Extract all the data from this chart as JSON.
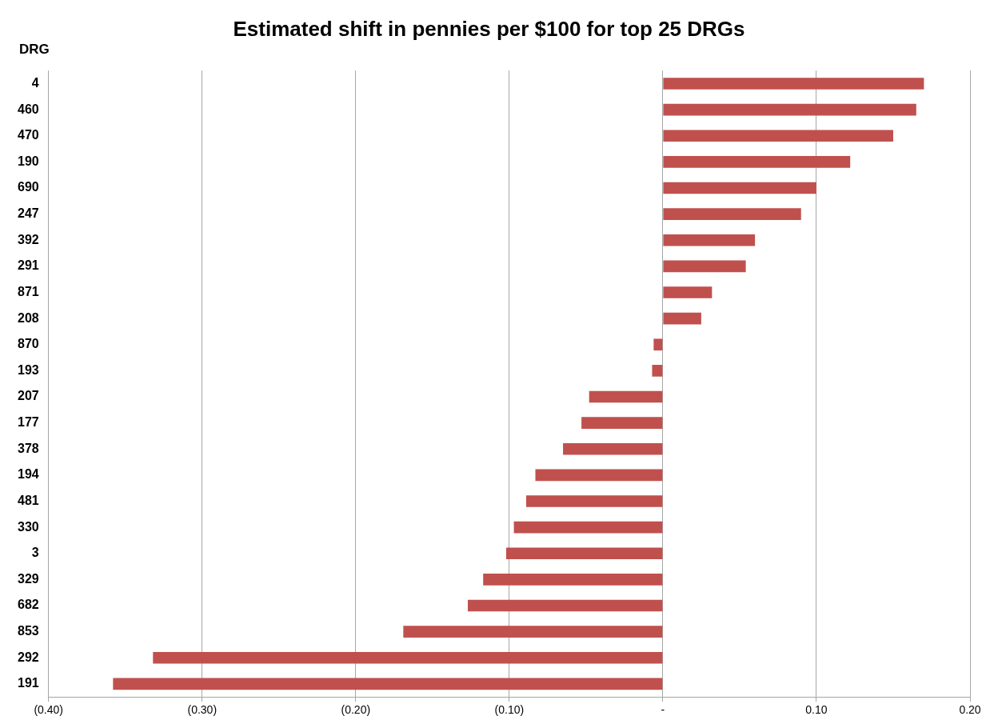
{
  "chart_data": {
    "type": "bar",
    "orientation": "horizontal",
    "title": "Estimated shift in pennies per $100 for top 25 DRGs",
    "ylabel": "DRG",
    "categories": [
      "4",
      "460",
      "470",
      "190",
      "690",
      "247",
      "392",
      "291",
      "871",
      "208",
      "870",
      "193",
      "207",
      "177",
      "378",
      "194",
      "481",
      "330",
      "3",
      "329",
      "682",
      "853",
      "292",
      "191"
    ],
    "values": [
      0.17,
      0.165,
      0.15,
      0.122,
      0.1,
      0.09,
      0.06,
      0.054,
      0.032,
      0.025,
      -0.006,
      -0.007,
      -0.048,
      -0.053,
      -0.065,
      -0.083,
      -0.089,
      -0.097,
      -0.102,
      -0.117,
      -0.127,
      -0.169,
      -0.332,
      -0.358
    ],
    "color": "#c0504d",
    "xlim": [
      -0.4,
      0.2
    ],
    "xticks": [
      {
        "value": -0.4,
        "label": "(0.40)"
      },
      {
        "value": -0.3,
        "label": "(0.30)"
      },
      {
        "value": -0.2,
        "label": "(0.20)"
      },
      {
        "value": -0.1,
        "label": "(0.10)"
      },
      {
        "value": 0,
        "label": "-"
      },
      {
        "value": 0.1,
        "label": "0.10"
      },
      {
        "value": 0.2,
        "label": "0.20"
      }
    ],
    "grid": "x",
    "legend": false
  }
}
